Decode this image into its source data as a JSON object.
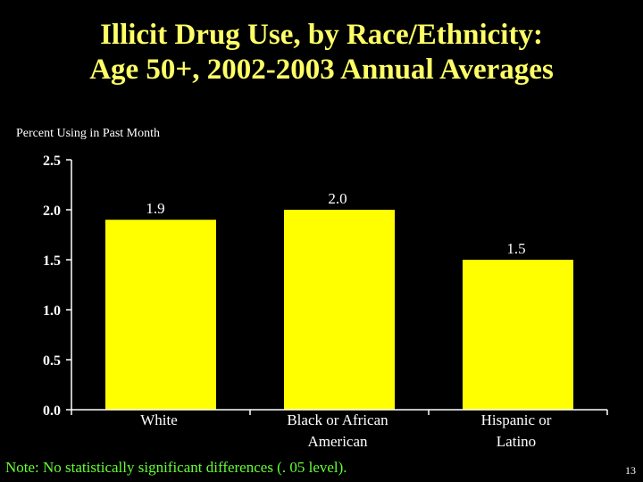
{
  "colors": {
    "background": "#000000",
    "title": "#ffff66",
    "bar": "#ffff00",
    "text": "#ffffff",
    "note": "#66ff33"
  },
  "chart_data": {
    "type": "bar",
    "title_lines": [
      "Illicit Drug Use, by Race/Ethnicity:",
      "Age 50+, 2002-2003 Annual Averages"
    ],
    "ylabel": "Percent Using in Past Month",
    "xlabel": "",
    "categories": [
      [
        "White"
      ],
      [
        "Black or African",
        "American"
      ],
      [
        "Hispanic or",
        "Latino"
      ]
    ],
    "values": [
      1.9,
      2.0,
      1.5
    ],
    "value_labels": [
      "1.9",
      "2.0",
      "1.5"
    ],
    "ylim": [
      0,
      2.5
    ],
    "yticks": [
      "0.0",
      "0.5",
      "1.0",
      "1.5",
      "2.0",
      "2.5"
    ],
    "grid": false,
    "legend": "none"
  },
  "footer": {
    "note": "Note: No statistically significant differences (. 05 level).",
    "page_number": "13"
  }
}
